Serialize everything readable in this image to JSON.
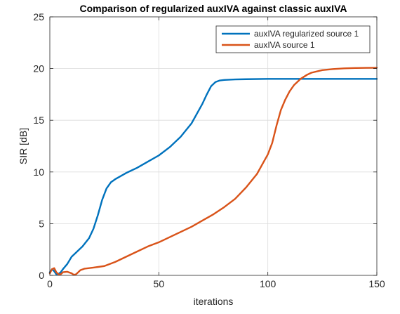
{
  "chart_data": {
    "type": "line",
    "title": "Comparison of regularized auxIVA against classic auxIVA",
    "xlabel": "iterations",
    "ylabel": "SIR [dB]",
    "xlim": [
      0,
      150
    ],
    "ylim": [
      0,
      25
    ],
    "xticks": [
      0,
      50,
      100,
      150
    ],
    "yticks": [
      0,
      5,
      10,
      15,
      20,
      25
    ],
    "grid": true,
    "legend_position": "top-right",
    "series": [
      {
        "name": "auxIVA regularized source 1",
        "color": "#0072BD",
        "x": [
          0,
          1,
          2,
          3,
          4,
          5,
          6,
          8,
          10,
          12,
          15,
          18,
          20,
          22,
          24,
          26,
          28,
          30,
          35,
          40,
          45,
          50,
          55,
          60,
          65,
          70,
          72,
          74,
          76,
          78,
          80,
          85,
          90,
          100,
          110,
          120,
          130,
          140,
          150
        ],
        "y": [
          0.3,
          0.6,
          0.4,
          0.1,
          0.15,
          0.3,
          0.6,
          1.1,
          1.8,
          2.2,
          2.8,
          3.6,
          4.5,
          5.8,
          7.3,
          8.4,
          9.0,
          9.3,
          9.9,
          10.4,
          11.0,
          11.6,
          12.4,
          13.4,
          14.7,
          16.6,
          17.5,
          18.3,
          18.7,
          18.85,
          18.9,
          18.95,
          18.97,
          19.0,
          19.0,
          19.0,
          19.0,
          19.0,
          19.0
        ]
      },
      {
        "name": "auxIVA source 1",
        "color": "#D95319",
        "x": [
          0,
          1,
          2,
          3,
          4,
          5,
          6,
          8,
          10,
          11,
          12,
          13,
          14,
          16,
          20,
          25,
          30,
          35,
          40,
          45,
          50,
          55,
          60,
          65,
          70,
          75,
          80,
          85,
          90,
          95,
          100,
          102,
          104,
          106,
          108,
          110,
          112,
          115,
          118,
          120,
          125,
          130,
          135,
          140,
          145,
          150
        ],
        "y": [
          0.2,
          0.6,
          0.7,
          0.3,
          0.1,
          0.1,
          0.3,
          0.35,
          0.2,
          0.05,
          0.1,
          0.3,
          0.5,
          0.65,
          0.75,
          0.9,
          1.3,
          1.8,
          2.3,
          2.8,
          3.2,
          3.7,
          4.2,
          4.7,
          5.3,
          5.9,
          6.6,
          7.4,
          8.5,
          9.8,
          11.7,
          12.8,
          14.5,
          16.0,
          17.0,
          17.8,
          18.4,
          19.0,
          19.4,
          19.6,
          19.85,
          19.95,
          20.02,
          20.05,
          20.07,
          20.08
        ]
      }
    ]
  }
}
